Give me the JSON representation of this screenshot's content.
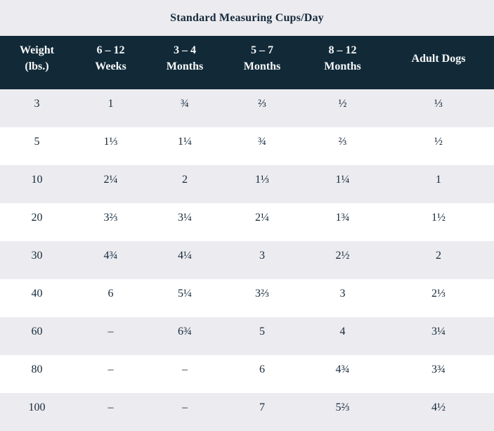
{
  "page": {
    "title": "Standard Measuring Cups/Day"
  },
  "chart_data": {
    "type": "table",
    "title": "Standard Measuring Cups/Day",
    "columns": [
      {
        "label": "Weight (lbs.)",
        "lines": [
          "Weight",
          "(lbs.)"
        ]
      },
      {
        "label": "6 – 12 Weeks",
        "lines": [
          "6 – 12",
          "Weeks"
        ]
      },
      {
        "label": "3 – 4 Months",
        "lines": [
          "3 – 4",
          "Months"
        ]
      },
      {
        "label": "5 – 7 Months",
        "lines": [
          "5 – 7",
          "Months"
        ]
      },
      {
        "label": "8 – 12 Months",
        "lines": [
          "8 – 12",
          "Months"
        ]
      },
      {
        "label": "Adult Dogs",
        "lines": [
          "Adult Dogs"
        ]
      }
    ],
    "rows": [
      [
        "3",
        "1",
        "¾",
        "⅔",
        "½",
        "⅓"
      ],
      [
        "5",
        "1⅓",
        "1¼",
        "¾",
        "⅔",
        "½"
      ],
      [
        "10",
        "2¼",
        "2",
        "1⅓",
        "1¼",
        "1"
      ],
      [
        "20",
        "3⅔",
        "3¼",
        "2¼",
        "1¾",
        "1½"
      ],
      [
        "30",
        "4¾",
        "4¼",
        "3",
        "2½",
        "2"
      ],
      [
        "40",
        "6",
        "5¼",
        "3⅔",
        "3",
        "2⅓"
      ],
      [
        "60",
        "–",
        "6¾",
        "5",
        "4",
        "3¼"
      ],
      [
        "80",
        "–",
        "–",
        "6",
        "4¾",
        "3¾"
      ],
      [
        "100",
        "–",
        "–",
        "7",
        "5⅔",
        "4½"
      ]
    ],
    "layout_hints": {
      "striped_rows": true,
      "stripe_pattern": "first-data-row-gray-then-alternating"
    }
  },
  "colors": {
    "header_bg": "#122a38",
    "header_text": "#f7f9fa",
    "stripe_bg": "#ebebf0",
    "row_white": "#ffffff",
    "text": "#16293a"
  }
}
